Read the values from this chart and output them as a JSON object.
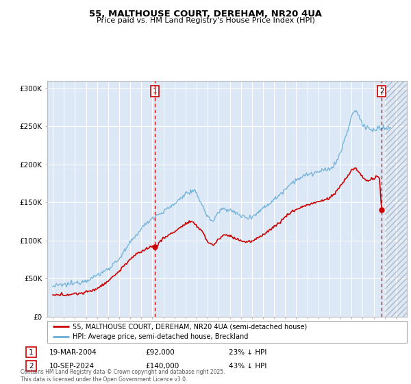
{
  "title": "55, MALTHOUSE COURT, DEREHAM, NR20 4UA",
  "subtitle": "Price paid vs. HM Land Registry's House Price Index (HPI)",
  "legend_line1": "55, MALTHOUSE COURT, DEREHAM, NR20 4UA (semi-detached house)",
  "legend_line2": "HPI: Average price, semi-detached house, Breckland",
  "annotation1_date": "19-MAR-2004",
  "annotation1_price": "£92,000",
  "annotation1_hpi": "23% ↓ HPI",
  "annotation2_date": "10-SEP-2024",
  "annotation2_price": "£140,000",
  "annotation2_hpi": "43% ↓ HPI",
  "footnote": "Contains HM Land Registry data © Crown copyright and database right 2025.\nThis data is licensed under the Open Government Licence v3.0.",
  "xmin": 1994.5,
  "xmax": 2027.0,
  "ymin": 0,
  "ymax": 310000,
  "sale1_year": 2004.22,
  "sale1_price": 92000,
  "sale2_year": 2024.72,
  "sale2_price": 140000,
  "future_start": 2025.0,
  "hpi_color": "#6baed6",
  "price_color": "#cc0000",
  "plot_bg": "#dce8f5"
}
